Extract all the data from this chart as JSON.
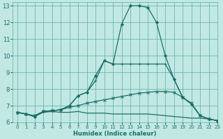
{
  "xlabel": "Humidex (Indice chaleur)",
  "ylabel": "",
  "bg_color": "#c2e8e4",
  "grid_color": "#5aada5",
  "line_color": "#1a6e68",
  "xlim": [
    -0.5,
    23
  ],
  "ylim": [
    6,
    13.2
  ],
  "xticks": [
    0,
    1,
    2,
    3,
    4,
    5,
    6,
    7,
    8,
    9,
    10,
    11,
    12,
    13,
    14,
    15,
    16,
    17,
    18,
    19,
    20,
    21,
    22,
    23
  ],
  "yticks": [
    6,
    7,
    8,
    9,
    10,
    11,
    12,
    13
  ],
  "lines": [
    {
      "x": [
        0,
        1,
        2,
        3,
        4,
        5,
        6,
        7,
        8,
        9,
        10,
        11,
        12,
        13,
        14,
        15,
        16,
        17,
        18,
        19,
        20,
        21,
        22,
        23
      ],
      "y": [
        6.6,
        6.5,
        6.35,
        6.6,
        6.65,
        6.6,
        6.6,
        6.65,
        6.55,
        6.55,
        6.55,
        6.5,
        6.5,
        6.5,
        6.5,
        6.5,
        6.45,
        6.4,
        6.35,
        6.3,
        6.25,
        6.25,
        6.2,
        6.1
      ],
      "marker": "None",
      "markersize": 0,
      "lw": 0.9
    },
    {
      "x": [
        0,
        1,
        2,
        3,
        4,
        5,
        6,
        7,
        8,
        9,
        10,
        11,
        12,
        13,
        14,
        15,
        16,
        17,
        18,
        19,
        20,
        21,
        22,
        23
      ],
      "y": [
        6.6,
        6.5,
        6.4,
        6.65,
        6.7,
        6.75,
        6.9,
        7.0,
        7.15,
        7.25,
        7.35,
        7.45,
        7.55,
        7.65,
        7.75,
        7.8,
        7.85,
        7.85,
        7.8,
        7.5,
        7.15,
        6.4,
        6.2,
        6.1
      ],
      "marker": "x",
      "markersize": 2.5,
      "lw": 0.9
    },
    {
      "x": [
        0,
        1,
        2,
        3,
        4,
        5,
        6,
        7,
        8,
        9,
        10,
        11,
        12,
        13,
        14,
        15,
        16,
        17,
        18,
        19,
        20,
        21,
        22,
        23
      ],
      "y": [
        6.6,
        6.5,
        6.35,
        6.65,
        6.7,
        6.75,
        7.0,
        7.6,
        7.8,
        8.5,
        9.7,
        9.5,
        9.5,
        9.5,
        9.5,
        9.5,
        9.5,
        9.5,
        8.6,
        7.5,
        7.1,
        6.4,
        6.2,
        6.1
      ],
      "marker": "+",
      "markersize": 3,
      "lw": 0.9
    },
    {
      "x": [
        0,
        1,
        2,
        3,
        4,
        5,
        6,
        7,
        8,
        9,
        10,
        11,
        12,
        13,
        14,
        15,
        16,
        17,
        18,
        19,
        20,
        21,
        22,
        23
      ],
      "y": [
        6.6,
        6.5,
        6.35,
        6.65,
        6.7,
        6.75,
        7.0,
        7.6,
        7.8,
        8.8,
        9.7,
        9.5,
        11.9,
        13.0,
        13.0,
        12.9,
        12.0,
        10.0,
        8.6,
        7.5,
        7.1,
        6.4,
        6.2,
        6.1
      ],
      "marker": "D",
      "markersize": 2,
      "lw": 0.9
    }
  ]
}
